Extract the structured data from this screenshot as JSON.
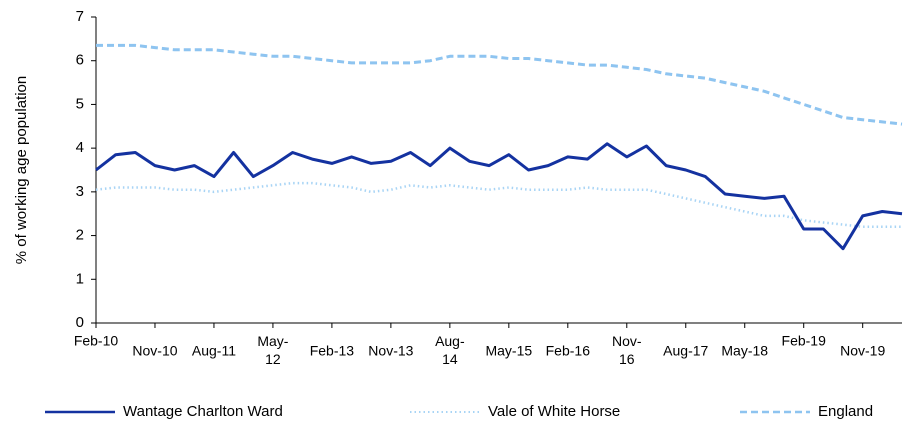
{
  "chart_data": {
    "type": "line",
    "y_label": "% of working age population",
    "categories": [
      "Feb-10",
      null,
      null,
      "Nov-10",
      null,
      null,
      "Aug-11",
      null,
      null,
      "May-12",
      null,
      null,
      "Feb-13",
      null,
      null,
      "Nov-13",
      null,
      null,
      "Aug-14",
      null,
      null,
      "May-15",
      null,
      null,
      "Feb-16",
      null,
      null,
      "Nov-16",
      null,
      null,
      "Aug-17",
      null,
      null,
      "May-18",
      null,
      null,
      "Feb-19",
      null,
      null,
      "Nov-19",
      null,
      null
    ],
    "series": [
      {
        "name": "Wantage Charlton Ward",
        "color": "#1432a0",
        "style": "solid",
        "values": [
          3.5,
          3.85,
          3.9,
          3.6,
          3.5,
          3.6,
          3.35,
          3.9,
          3.35,
          3.6,
          3.9,
          3.75,
          3.65,
          3.8,
          3.65,
          3.7,
          3.9,
          3.6,
          4.0,
          3.7,
          3.6,
          3.85,
          3.5,
          3.6,
          3.8,
          3.75,
          4.1,
          3.8,
          4.05,
          3.6,
          3.5,
          3.35,
          2.95,
          2.9,
          2.85,
          2.9,
          2.15,
          2.15,
          1.7,
          2.45,
          2.55,
          2.5
        ]
      },
      {
        "name": "Vale of White Horse",
        "color": "#a8d4f5",
        "style": "dotted",
        "values": [
          3.05,
          3.1,
          3.1,
          3.1,
          3.05,
          3.05,
          3.0,
          3.05,
          3.1,
          3.15,
          3.2,
          3.2,
          3.15,
          3.1,
          3.0,
          3.05,
          3.15,
          3.1,
          3.15,
          3.1,
          3.05,
          3.1,
          3.05,
          3.05,
          3.05,
          3.1,
          3.05,
          3.05,
          3.05,
          2.95,
          2.85,
          2.75,
          2.65,
          2.55,
          2.45,
          2.45,
          2.35,
          2.3,
          2.25,
          2.2,
          2.2,
          2.2
        ]
      },
      {
        "name": "England",
        "color": "#8ec4f0",
        "style": "dashed",
        "values": [
          6.35,
          6.35,
          6.35,
          6.3,
          6.25,
          6.25,
          6.25,
          6.2,
          6.15,
          6.1,
          6.1,
          6.05,
          6.0,
          5.95,
          5.95,
          5.95,
          5.95,
          6.0,
          6.1,
          6.1,
          6.1,
          6.05,
          6.05,
          6.0,
          5.95,
          5.9,
          5.9,
          5.85,
          5.8,
          5.7,
          5.65,
          5.6,
          5.5,
          5.4,
          5.3,
          5.15,
          5.0,
          4.85,
          4.7,
          4.65,
          4.6,
          4.55
        ]
      }
    ],
    "ylim": [
      0,
      7
    ],
    "yticks": [
      0,
      1,
      2,
      3,
      4,
      5,
      6,
      7
    ]
  }
}
